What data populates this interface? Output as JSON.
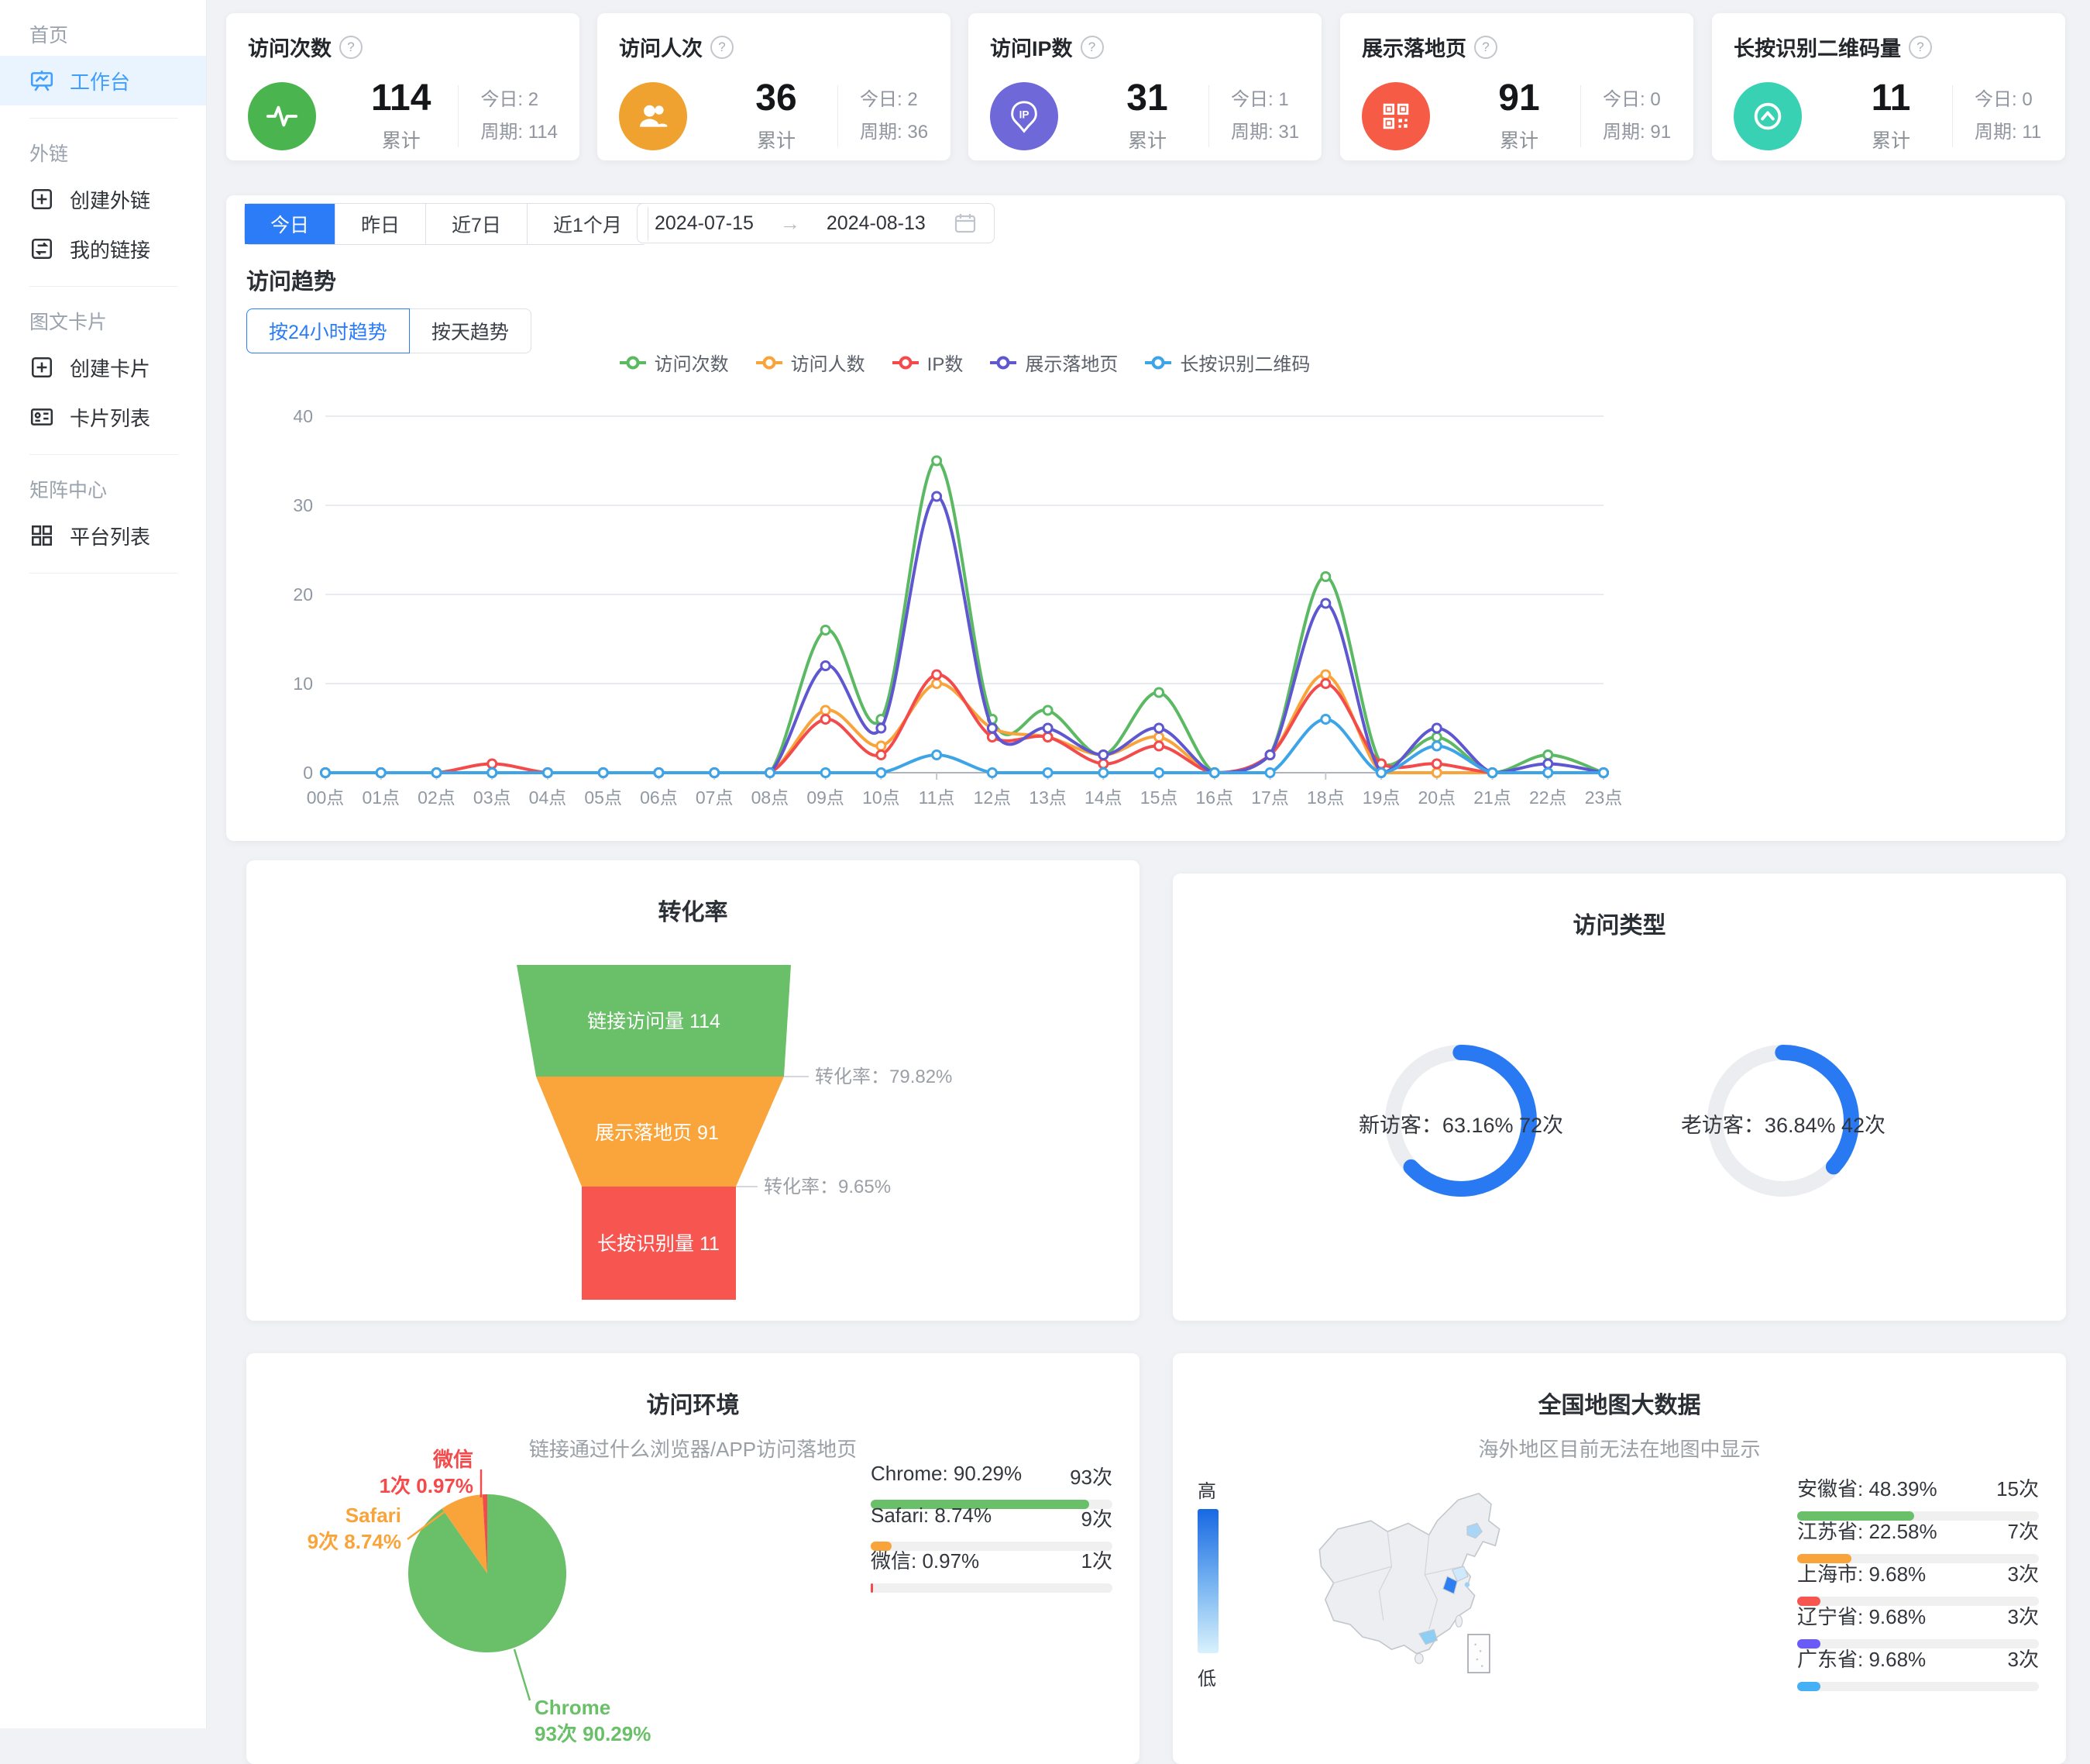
{
  "sidebar": {
    "sections": [
      {
        "label": "首页",
        "items": [
          {
            "label": "工作台",
            "icon": "workbench-icon",
            "active": true
          }
        ]
      },
      {
        "label": "外链",
        "items": [
          {
            "label": "创建外链",
            "icon": "plus-square-icon"
          },
          {
            "label": "我的链接",
            "icon": "link-swap-icon"
          }
        ]
      },
      {
        "label": "图文卡片",
        "items": [
          {
            "label": "创建卡片",
            "icon": "plus-square-icon"
          },
          {
            "label": "卡片列表",
            "icon": "card-list-icon"
          }
        ]
      },
      {
        "label": "矩阵中心",
        "items": [
          {
            "label": "平台列表",
            "icon": "grid-icon"
          }
        ]
      }
    ]
  },
  "stat_cards": [
    {
      "title": "访问次数",
      "icon": "pulse-icon",
      "color": "#4ab54e",
      "value": "114",
      "value_label": "累计",
      "today_label": "今日:",
      "today_value": "2",
      "cycle_label": "周期:",
      "cycle_value": "114"
    },
    {
      "title": "访问人次",
      "icon": "users-icon",
      "color": "#efa22f",
      "value": "36",
      "value_label": "累计",
      "today_label": "今日:",
      "today_value": "2",
      "cycle_label": "周期:",
      "cycle_value": "36"
    },
    {
      "title": "访问IP数",
      "icon": "ip-pin-icon",
      "color": "#6f68d9",
      "value": "31",
      "value_label": "累计",
      "today_label": "今日:",
      "today_value": "1",
      "cycle_label": "周期:",
      "cycle_value": "31"
    },
    {
      "title": "展示落地页",
      "icon": "qr-code-icon",
      "color": "#f55b45",
      "value": "91",
      "value_label": "累计",
      "today_label": "今日:",
      "today_value": "0",
      "cycle_label": "周期:",
      "cycle_value": "91"
    },
    {
      "title": "长按识别二维码量",
      "icon": "scan-up-icon",
      "color": "#39d1b4",
      "value": "11",
      "value_label": "累计",
      "today_label": "今日:",
      "today_value": "0",
      "cycle_label": "周期:",
      "cycle_value": "11"
    }
  ],
  "filters": {
    "range_tabs": [
      {
        "label": "今日",
        "active": true
      },
      {
        "label": "昨日",
        "active": false
      },
      {
        "label": "近7日",
        "active": false
      },
      {
        "label": "近1个月",
        "active": false
      }
    ],
    "date_start": "2024-07-15",
    "date_arrow": "→",
    "date_end": "2024-08-13"
  },
  "trend": {
    "title": "访问趋势",
    "mode_tabs": [
      {
        "label": "按24小时趋势",
        "active": true
      },
      {
        "label": "按天趋势",
        "active": false
      }
    ]
  },
  "chart_data": [
    {
      "type": "line",
      "title": "访问趋势",
      "categories": [
        "00点",
        "01点",
        "02点",
        "03点",
        "04点",
        "05点",
        "06点",
        "07点",
        "08点",
        "09点",
        "10点",
        "11点",
        "12点",
        "13点",
        "14点",
        "15点",
        "16点",
        "17点",
        "18点",
        "19点",
        "20点",
        "21点",
        "22点",
        "23点"
      ],
      "series": [
        {
          "name": "访问次数",
          "color": "#5bb963",
          "values": [
            0,
            0,
            0,
            0,
            0,
            0,
            0,
            0,
            0,
            16,
            6,
            35,
            6,
            7,
            2,
            9,
            0,
            2,
            22,
            1,
            4,
            0,
            2,
            0
          ]
        },
        {
          "name": "访问人数",
          "color": "#f9a43a",
          "values": [
            0,
            0,
            0,
            0,
            0,
            0,
            0,
            0,
            0,
            7,
            3,
            10,
            5,
            4,
            2,
            4,
            0,
            2,
            11,
            0,
            0,
            0,
            0,
            0
          ]
        },
        {
          "name": "IP数",
          "color": "#f34b4b",
          "values": [
            0,
            0,
            0,
            1,
            0,
            0,
            0,
            0,
            0,
            6,
            2,
            11,
            4,
            4,
            1,
            3,
            0,
            2,
            10,
            1,
            1,
            0,
            0,
            0
          ]
        },
        {
          "name": "展示落地页",
          "color": "#5e57d0",
          "values": [
            0,
            0,
            0,
            0,
            0,
            0,
            0,
            0,
            0,
            12,
            5,
            31,
            5,
            5,
            2,
            5,
            0,
            2,
            19,
            0,
            5,
            0,
            1,
            0
          ]
        },
        {
          "name": "长按识别二维码",
          "color": "#3da4e8",
          "values": [
            0,
            0,
            0,
            0,
            0,
            0,
            0,
            0,
            0,
            0,
            0,
            2,
            0,
            0,
            0,
            0,
            0,
            0,
            6,
            0,
            3,
            0,
            0,
            0
          ]
        }
      ],
      "ylim": [
        0,
        40
      ],
      "yticks": [
        0,
        10,
        20,
        30,
        40
      ],
      "grid": "horizontal",
      "legend_position": "top"
    },
    {
      "type": "funnel",
      "title": "转化率",
      "stages": [
        {
          "label": "链接访问量",
          "value": 114,
          "text": "链接访问量 114",
          "color": "#6abf69"
        },
        {
          "label": "展示落地页",
          "value": 91,
          "text": "展示落地页 91",
          "color": "#f9a53c"
        },
        {
          "label": "长按识别量",
          "value": 11,
          "text": "长按识别量 11",
          "color": "#f65550"
        }
      ],
      "conversions": [
        {
          "text": "转化率：79.82%",
          "value": 79.82
        },
        {
          "text": "转化率：9.65%",
          "value": 9.65
        }
      ]
    },
    {
      "type": "donut",
      "title": "访问类型",
      "color": "#2979f2",
      "track": "#ebedf0",
      "items": [
        {
          "label": "新访客",
          "percent": 63.16,
          "count": 72,
          "text": "新访客：63.16% 72次"
        },
        {
          "label": "老访客",
          "percent": 36.84,
          "count": 42,
          "text": "老访客：36.84% 42次"
        }
      ]
    },
    {
      "type": "pie",
      "title": "访问环境",
      "subtitle": "链接通过什么浏览器/APP访问落地页",
      "slices": [
        {
          "label": "Chrome",
          "percent": 90.29,
          "count": 93,
          "color": "#6abf69",
          "callout_line1": "Chrome",
          "callout_line2": "93次 90.29%"
        },
        {
          "label": "Safari",
          "percent": 8.74,
          "count": 9,
          "color": "#f9a43a",
          "callout_line1": "Safari",
          "callout_line2": "9次 8.74%"
        },
        {
          "label": "微信",
          "percent": 0.97,
          "count": 1,
          "color": "#f34b4b",
          "callout_line1": "微信",
          "callout_line2": "1次 0.97%"
        }
      ],
      "list": [
        {
          "label": "Chrome: 90.29%",
          "value": "93次",
          "percent": 90.29,
          "color": "#6abf69"
        },
        {
          "label": "Safari: 8.74%",
          "value": "9次",
          "percent": 8.74,
          "color": "#f9a43a"
        },
        {
          "label": "微信: 0.97%",
          "value": "1次",
          "percent": 0.97,
          "color": "#f34b4b"
        }
      ]
    },
    {
      "type": "map",
      "title": "全国地图大数据",
      "subtitle": "海外地区目前无法在地图中显示",
      "scale_high": "高",
      "scale_low": "低",
      "regions": [
        {
          "label": "安徽省: 48.39%",
          "value": "15次",
          "percent": 48.39,
          "color": "#6abf69"
        },
        {
          "label": "江苏省: 22.58%",
          "value": "7次",
          "percent": 22.58,
          "color": "#f9a43a"
        },
        {
          "label": "上海市: 9.68%",
          "value": "3次",
          "percent": 9.68,
          "color": "#f65550"
        },
        {
          "label": "辽宁省: 9.68%",
          "value": "3次",
          "percent": 9.68,
          "color": "#6a5af9"
        },
        {
          "label": "广东省: 9.68%",
          "value": "3次",
          "percent": 9.68,
          "color": "#45b0f5"
        }
      ]
    }
  ]
}
